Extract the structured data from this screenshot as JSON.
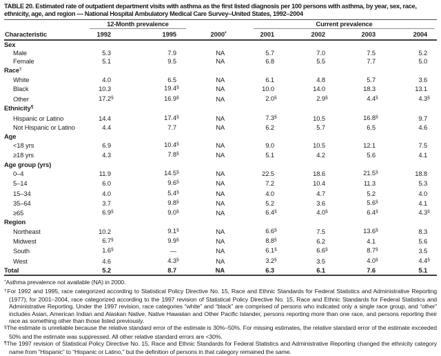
{
  "title": "TABLE 20. Estimated rate of outpatient department visits with asthma as the first listed diagnosis per 100 persons with asthma, by year, sex, race, ethnicity, age, and region — National Hospital Ambulatory Medical Care Survey–United States, 1992–2004",
  "table": {
    "group_headers": [
      "12-Month prevalence",
      "Current prevalence"
    ],
    "columns": [
      "Characteristic",
      "1992",
      "1995",
      "2000*",
      "2001",
      "2002",
      "2003",
      "2004"
    ],
    "rows": [
      {
        "label": "Sex",
        "type": "group",
        "values": [
          "",
          "",
          "",
          "",
          "",
          "",
          ""
        ]
      },
      {
        "label": "Male",
        "type": "item",
        "values": [
          "5.3",
          "7.9",
          "NA",
          "5.7",
          "7.0",
          "7.5",
          "5.2"
        ]
      },
      {
        "label": "Female",
        "type": "item",
        "values": [
          "5.1",
          "9.5",
          "NA",
          "6.8",
          "5.5",
          "7.7",
          "5.0"
        ]
      },
      {
        "label": "Race†",
        "type": "group",
        "values": [
          "",
          "",
          "",
          "",
          "",
          "",
          ""
        ]
      },
      {
        "label": "White",
        "type": "item",
        "values": [
          "4.0",
          "6.5",
          "NA",
          "6.1",
          "4.8",
          "5.7",
          "3.6"
        ]
      },
      {
        "label": "Black",
        "type": "item",
        "values": [
          "10.3",
          "19.4§",
          "NA",
          "10.0",
          "14.0",
          "18.3",
          "13.1"
        ]
      },
      {
        "label": "Other",
        "type": "item",
        "values": [
          "17.2§",
          "16.9§",
          "NA",
          "2.0§",
          "2.9§",
          "4.4§",
          "4.3§"
        ]
      },
      {
        "label": "Ethnicity¶",
        "type": "group",
        "values": [
          "",
          "",
          "",
          "",
          "",
          "",
          ""
        ]
      },
      {
        "label": "Hispanic or Latino",
        "type": "item",
        "values": [
          "14.4",
          "17.4§",
          "NA",
          "7.3§",
          "10.5",
          "16.8§",
          "9.7"
        ]
      },
      {
        "label": "Not Hispanic or Latino",
        "type": "item",
        "values": [
          "4.4",
          "7.7",
          "NA",
          "6.2",
          "5.7",
          "6.5",
          "4.6"
        ]
      },
      {
        "label": "Age",
        "type": "group",
        "values": [
          "",
          "",
          "",
          "",
          "",
          "",
          ""
        ]
      },
      {
        "label": "<18 yrs",
        "type": "item",
        "values": [
          "6.9",
          "10.4§",
          "NA",
          "9.0",
          "10.5",
          "12.1",
          "7.5"
        ]
      },
      {
        "label": "≥18 yrs",
        "type": "item",
        "values": [
          "4.3",
          "7.8§",
          "NA",
          "5.1",
          "4.2",
          "5.6",
          "4.1"
        ]
      },
      {
        "label": "Age group (yrs)",
        "type": "group",
        "values": [
          "",
          "",
          "",
          "",
          "",
          "",
          ""
        ]
      },
      {
        "label": "0–4",
        "type": "item",
        "values": [
          "11.9",
          "14.5§",
          "NA",
          "22.5",
          "18.6",
          "21.5§",
          "18.8"
        ]
      },
      {
        "label": "5–14",
        "type": "item",
        "values": [
          "6.0",
          "9.6§",
          "NA",
          "7.2",
          "10.4",
          "11.3",
          "5.3"
        ]
      },
      {
        "label": "15–34",
        "type": "item",
        "values": [
          "4.0",
          "5.4§",
          "NA",
          "4.0",
          "4.7",
          "5.2",
          "4.0"
        ]
      },
      {
        "label": "35–64",
        "type": "item",
        "values": [
          "3.7",
          "9.8§",
          "NA",
          "5.2",
          "3.6",
          "5.6§",
          "4.1"
        ]
      },
      {
        "label": "≥65",
        "type": "item",
        "values": [
          "6.9§",
          "9.0§",
          "NA",
          "6.4§",
          "4.0§",
          "6.4§",
          "4.3§"
        ]
      },
      {
        "label": "Region",
        "type": "group",
        "values": [
          "",
          "",
          "",
          "",
          "",
          "",
          ""
        ]
      },
      {
        "label": "Northeast",
        "type": "item",
        "values": [
          "10.2",
          "9.1§",
          "NA",
          "6.6§",
          "7.5",
          "13.6§",
          "8.3"
        ]
      },
      {
        "label": "Midwest",
        "type": "item",
        "values": [
          "6.7§",
          "9.9§",
          "NA",
          "8.8§",
          "6.2",
          "4.1",
          "5.6"
        ]
      },
      {
        "label": "South",
        "type": "item",
        "values": [
          "1.6§",
          "—",
          "NA",
          "6.1§",
          "6.6§",
          "8.7§",
          "3.5"
        ]
      },
      {
        "label": "West",
        "type": "item",
        "values": [
          "4.6",
          "4.3§",
          "NA",
          "3.2§",
          "3.5",
          "4.0§",
          "4.4§"
        ]
      },
      {
        "label": "Total",
        "type": "total",
        "values": [
          "5.2",
          "8.7",
          "NA",
          "6.3",
          "6.1",
          "7.6",
          "5.1"
        ]
      }
    ]
  },
  "footnotes": [
    {
      "marker": "*",
      "text": "Asthma prevalence not available (NA) in 2000."
    },
    {
      "marker": "†",
      "text": "For 1992 and 1995, race categorized according to Statistical Policy Directive No. 15, Race and Ethnic Standards for Federal Statistics and Administrative Reporting (1977); for 2001–2004, race categorized according to the 1997 revision of Statistical Policy Directive No. 15, Race and Ethnic Standards for Federal Statistics and Administrative Reporting. Under the 1997 revision, race categories “white” and “black” are comprised of persons who indicated only a single race group, and “other” includes Asian, American Indian and Alaskan Native, Native Hawaiian and Other Pacific Islander, persons reporting more than one race, and persons reporting their race as something other than those listed previously."
    },
    {
      "marker": "§",
      "text": "The estimate is unreliable because the relative standard error of the estimate is 30%–50%. For missing estimates, the relative standard error of the estimate exceeded 50% and the estimate was suppressed. All other relative standard errors are <30%."
    },
    {
      "marker": "¶",
      "text": "The 1997 revision of Statistical Policy Directive No. 15, Race and Ethnic Standards for Federal Statistics and Administrative Reporting changed the ethnicity category name from “Hispanic” to “Hispanic or Latino,” but the definition of persons in that category remained the same."
    }
  ]
}
